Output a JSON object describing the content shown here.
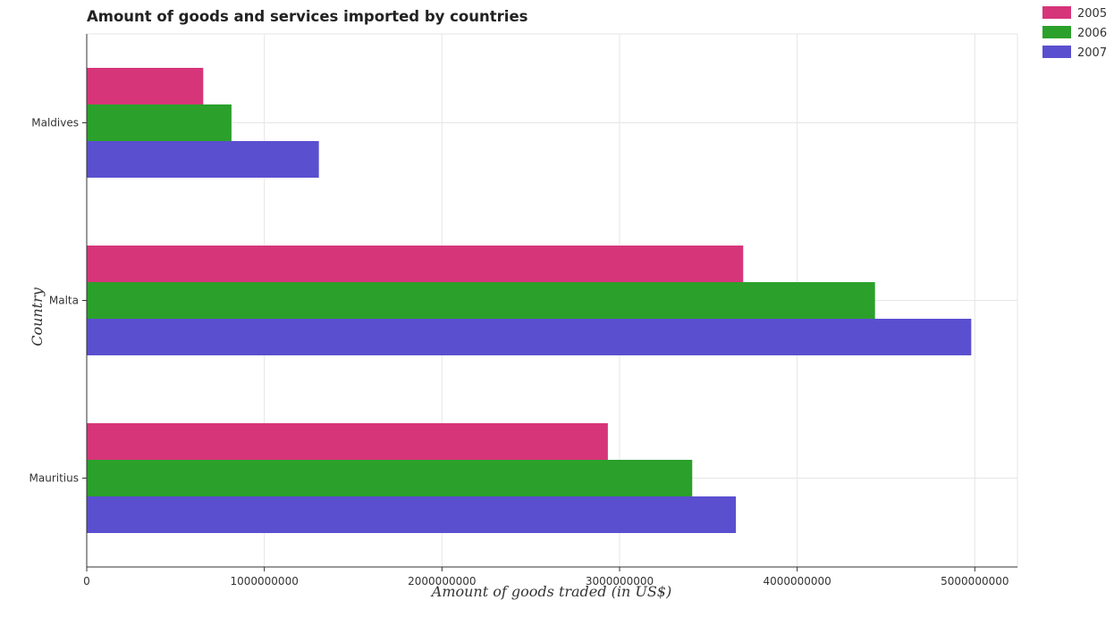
{
  "chart_data": {
    "type": "bar",
    "orientation": "horizontal",
    "title": "Amount of goods and services imported by countries",
    "xlabel": "Amount of goods traded (in US$)",
    "ylabel": "Country",
    "categories": [
      "Maldives",
      "Malta",
      "Mauritius"
    ],
    "series": [
      {
        "name": "2005",
        "color": "#d6357a",
        "values": [
          656000000,
          3696000000,
          2934000000
        ]
      },
      {
        "name": "2006",
        "color": "#2ba02b",
        "values": [
          815000000,
          4438000000,
          3409000000
        ]
      },
      {
        "name": "2007",
        "color": "#5a4fcf",
        "values": [
          1307000000,
          4980000000,
          3655000000
        ]
      }
    ],
    "xlim": [
      0,
      5240000000
    ],
    "xticks": [
      0,
      1000000000,
      2000000000,
      3000000000,
      4000000000,
      5000000000
    ],
    "xtick_labels": [
      "0",
      "1000000000",
      "2000000000",
      "3000000000",
      "4000000000",
      "5000000000"
    ],
    "grid": true,
    "legend_position": "top-right"
  }
}
